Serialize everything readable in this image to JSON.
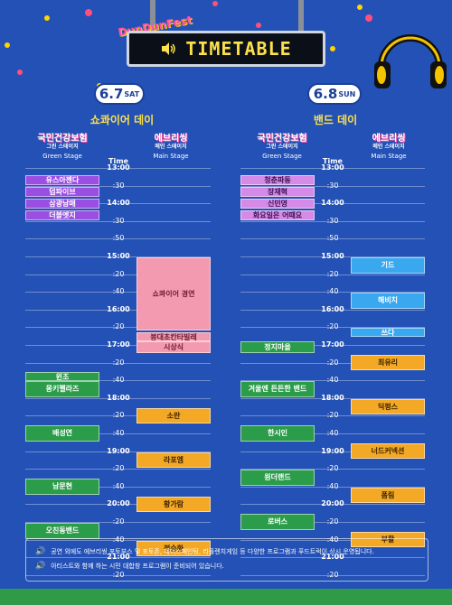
{
  "header": {
    "logo_text": "DunDunFest",
    "title": "TIMETABLE",
    "speaker_icon": "speaker-icon"
  },
  "days": [
    {
      "date": "6.7",
      "weekday": "SAT",
      "theme": "쇼콰이어 데이",
      "stage_left": {
        "line1": "국민건강보험",
        "line2": "그린 스테이지",
        "line3": "Green Stage"
      },
      "stage_right": {
        "line1": "에브리씽",
        "line2": "메인 스테이지",
        "line3": "Main Stage"
      },
      "time_header": "Time",
      "green": [
        {
          "name": "유스아젠다",
          "start": "13:10",
          "end": "13:30",
          "color": "purple"
        },
        {
          "name": "덥파이브",
          "start": "13:30",
          "end": "13:50",
          "color": "purple"
        },
        {
          "name": "삼광남매",
          "start": "13:50",
          "end": "14:10",
          "color": "purple"
        },
        {
          "name": "더블엣지",
          "start": "14:10",
          "end": "14:30",
          "color": "purple"
        },
        {
          "name": "윈조",
          "start": "17:30",
          "end": "17:40",
          "color": "green"
        },
        {
          "name": "몽키펠라즈",
          "start": "17:40",
          "end": "18:00",
          "color": "green"
        },
        {
          "name": "배성연",
          "start": "18:30",
          "end": "18:50",
          "color": "green"
        },
        {
          "name": "남문현",
          "start": "19:30",
          "end": "19:50",
          "color": "green"
        },
        {
          "name": "오친동밴드",
          "start": "20:20",
          "end": "20:40",
          "color": "green"
        }
      ],
      "main": [
        {
          "name": "쇼콰이어 경연",
          "start": "15:00",
          "end": "16:30",
          "color": "pink"
        },
        {
          "name": "붕대초칸타빌레",
          "start": "16:30",
          "end": "16:50",
          "color": "pink"
        },
        {
          "name": "시상식",
          "start": "16:50",
          "end": "17:10",
          "color": "pink"
        },
        {
          "name": "소란",
          "start": "18:10",
          "end": "18:30",
          "color": "orange"
        },
        {
          "name": "라포엠",
          "start": "19:00",
          "end": "19:20",
          "color": "orange"
        },
        {
          "name": "황가람",
          "start": "19:50",
          "end": "20:10",
          "color": "orange"
        },
        {
          "name": "정승환",
          "start": "20:40",
          "end": "21:00",
          "color": "orange"
        }
      ]
    },
    {
      "date": "6.8",
      "weekday": "SUN",
      "theme": "밴드 데이",
      "stage_left": {
        "line1": "국민건강보험",
        "line2": "그린 스테이지",
        "line3": "Green Stage"
      },
      "stage_right": {
        "line1": "에브리씽",
        "line2": "메인 스테이지",
        "line3": "Main Stage"
      },
      "time_header": "Time",
      "green": [
        {
          "name": "청춘파동",
          "start": "13:10",
          "end": "13:30",
          "color": "lav"
        },
        {
          "name": "장재혁",
          "start": "13:30",
          "end": "13:50",
          "color": "lav"
        },
        {
          "name": "신민영",
          "start": "13:50",
          "end": "14:10",
          "color": "lav"
        },
        {
          "name": "화요일은 어때요",
          "start": "14:10",
          "end": "14:30",
          "color": "lav"
        },
        {
          "name": "정지마을",
          "start": "16:50",
          "end": "17:10",
          "color": "green"
        },
        {
          "name": "겨울엔 든든한 밴드",
          "start": "17:40",
          "end": "18:00",
          "color": "green"
        },
        {
          "name": "한시인",
          "start": "18:30",
          "end": "18:50",
          "color": "green"
        },
        {
          "name": "원더랜드",
          "start": "19:20",
          "end": "19:40",
          "color": "green"
        },
        {
          "name": "로버스",
          "start": "20:10",
          "end": "20:30",
          "color": "green"
        }
      ],
      "main": [
        {
          "name": "기드",
          "start": "15:00",
          "end": "15:20",
          "color": "sky"
        },
        {
          "name": "해비치",
          "start": "15:40",
          "end": "16:00",
          "color": "sky"
        },
        {
          "name": "쓰다",
          "start": "16:20",
          "end": "16:40",
          "color": "sky"
        },
        {
          "name": "최유리",
          "start": "17:10",
          "end": "17:30",
          "color": "orange"
        },
        {
          "name": "딕펑스",
          "start": "18:00",
          "end": "18:20",
          "color": "orange"
        },
        {
          "name": "너드커넥션",
          "start": "18:50",
          "end": "19:10",
          "color": "orange"
        },
        {
          "name": "폼림",
          "start": "19:40",
          "end": "20:00",
          "color": "orange"
        },
        {
          "name": "부활",
          "start": "20:30",
          "end": "20:50",
          "color": "orange"
        }
      ]
    }
  ],
  "times": [
    "13:00",
    ":30",
    "14:00",
    ":30",
    ":50",
    "15:00",
    ":20",
    ":40",
    "16:00",
    ":20",
    "17:00",
    ":20",
    ":40",
    "18:00",
    ":20",
    ":40",
    "19:00",
    ":20",
    ":40",
    "20:00",
    ":20",
    ":40",
    "21:00",
    ":20",
    ":40"
  ],
  "footer": {
    "line1": "공연 외에도 에브리씽 포토부스 및 포토존, 페이스페인팅, 리플렌치게임 등 다양한 프로그램과 푸드트럭이 상시 운영됩니다.",
    "line2": "아티스트와 함께 하는 시민 대합창 프로그램이 준비되어 있습니다."
  },
  "colors": {
    "background": "#2451b5",
    "accent_yellow": "#fde14a",
    "purple": "#9a4fe2",
    "green": "#2a9c4a",
    "pink": "#f49ab0",
    "orange": "#f3a826",
    "lavender": "#d48ae6",
    "sky": "#3aa8ef"
  }
}
